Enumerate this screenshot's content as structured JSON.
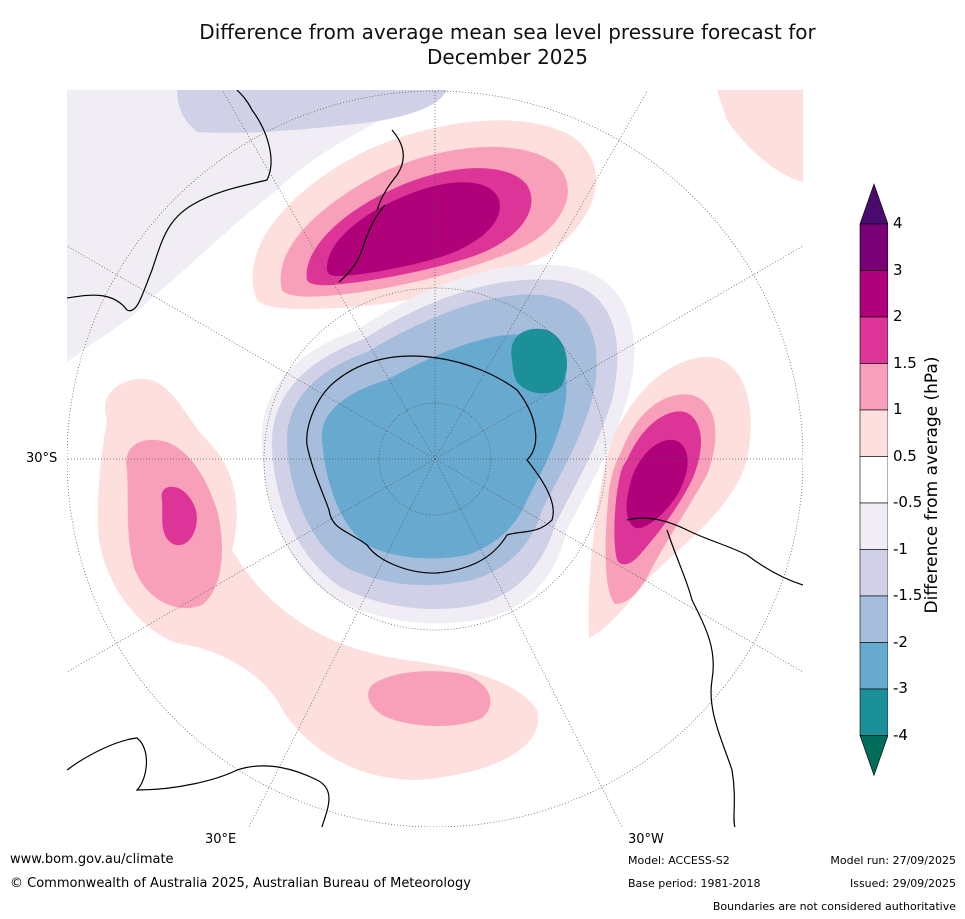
{
  "title_line1": "Difference from average mean sea level pressure forecast for",
  "title_line2": "December 2025",
  "map": {
    "projection": "south-polar-stereographic",
    "labels": {
      "lat": "30°S",
      "lon_left": "30°E",
      "lon_right": "30°W"
    }
  },
  "colorbar": {
    "title": "Difference from average (hPa)",
    "ticks": [
      "4",
      "3",
      "2",
      "1.5",
      "1",
      "0.5",
      "-0.5",
      "-1",
      "-1.5",
      "-2",
      "-3",
      "-4"
    ],
    "bins": [
      {
        "range": "> 4",
        "color": "#4a0a6e"
      },
      {
        "range": "3 to 4",
        "color": "#7b0077"
      },
      {
        "range": "2 to 3",
        "color": "#b0007a"
      },
      {
        "range": "1.5 to 2",
        "color": "#dd3497"
      },
      {
        "range": "1 to 1.5",
        "color": "#f89fba"
      },
      {
        "range": "0.5 to 1",
        "color": "#fde0dd"
      },
      {
        "range": "-0.5 to 0.5",
        "color": "#ffffff"
      },
      {
        "range": "-1 to -0.5",
        "color": "#f1edf4"
      },
      {
        "range": "-1.5 to -1",
        "color": "#d0d1e6"
      },
      {
        "range": "-2 to -1.5",
        "color": "#a6bddb"
      },
      {
        "range": "-3 to -2",
        "color": "#67a9cf"
      },
      {
        "range": "-4 to -3",
        "color": "#1c9099"
      },
      {
        "range": "< -4",
        "color": "#016c59"
      }
    ]
  },
  "footer": {
    "website": "www.bom.gov.au/climate",
    "copyright": "© Commonwealth of Australia 2025, Australian Bureau of Meteorology",
    "model": "Model: ACCESS-S2",
    "base_period": "Base period: 1981-2018",
    "model_run": "Model run: 27/09/2025",
    "issued": "Issued: 29/09/2025",
    "disclaimer": "Boundaries are not considered authoritative"
  }
}
